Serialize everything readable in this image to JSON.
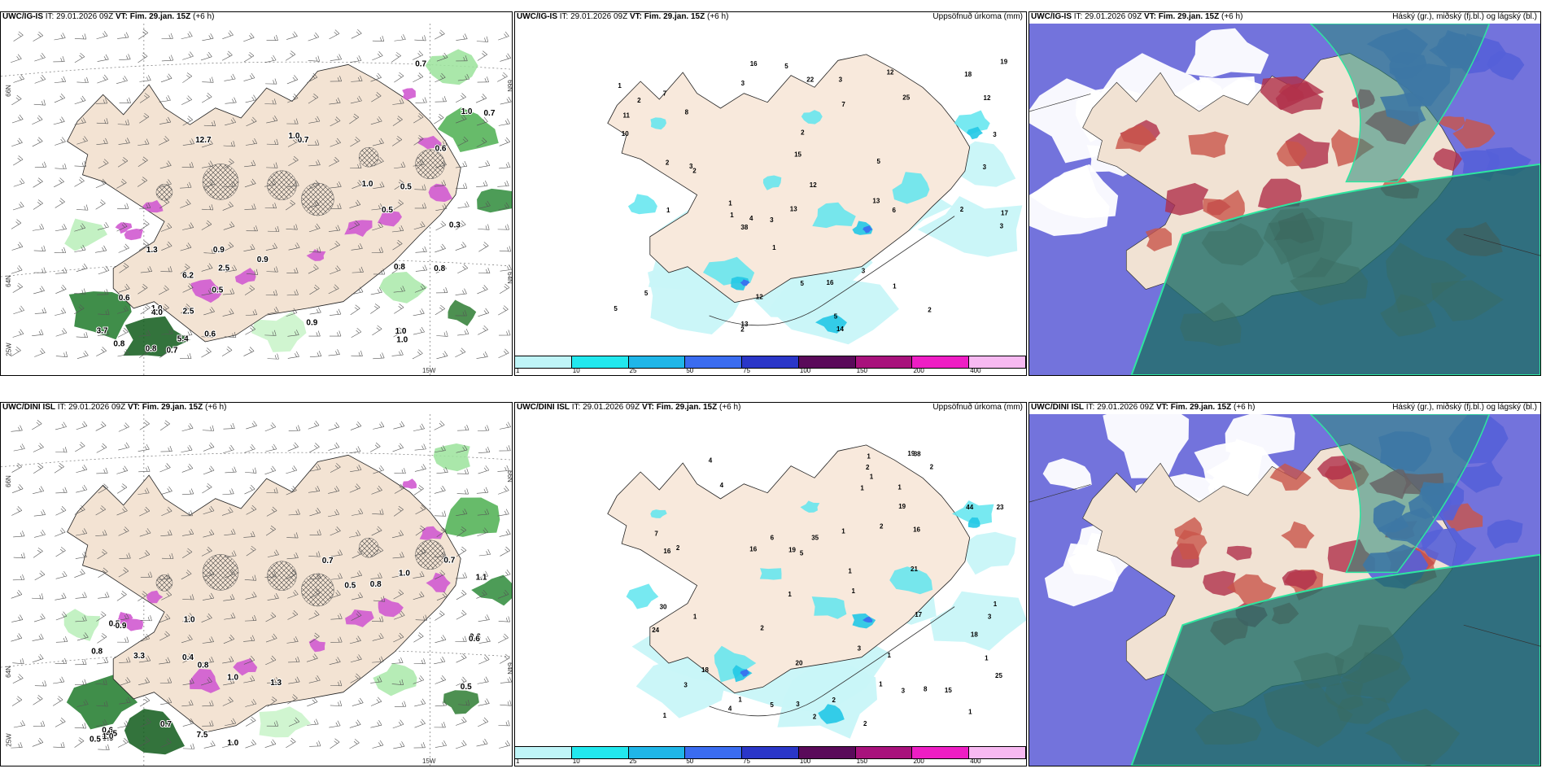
{
  "rows": [
    {
      "model": "UWC/IG-IS",
      "panels": [
        {
          "model": "UWC/IG-IS",
          "it": "IT: 29.01.2026 09Z",
          "vt_label": "VT:",
          "vt": "Fim. 29.jan. 15Z",
          "step": "(+6 h)",
          "title_right": "",
          "lat1": "66N",
          "lat2": "64N",
          "lon_left": "25W",
          "lon_bottom": "15W",
          "lat1_right": "66N",
          "lat2_right": "64N"
        },
        {
          "model": "UWC/IG-IS",
          "it": "IT: 29.01.2026 09Z",
          "vt_label": "VT:",
          "vt": "Fim. 29.jan. 15Z",
          "step": "(+6 h)",
          "title_right": "Uppsöfnuð úrkoma (mm)"
        },
        {
          "model": "UWC/IG-IS",
          "it": "IT: 29.01.2026 09Z",
          "vt_label": "VT:",
          "vt": "Fim. 29.jan. 15Z",
          "step": "(+6 h)",
          "title_right": "Háský (gr.), miðský (fj.bl.) og lágský (bl.)"
        }
      ],
      "precip_labels": [
        "1",
        "1",
        "2",
        "2",
        "1",
        "1",
        "3",
        "5",
        "3",
        "3",
        "5",
        "7",
        "3",
        "3",
        "2",
        "5",
        "18",
        "12",
        "16",
        "14",
        "38",
        "12",
        "5",
        "11",
        "10",
        "7",
        "17",
        "6",
        "3",
        "5",
        "12",
        "13",
        "2",
        "3",
        "8",
        "4",
        "19",
        "22",
        "15",
        "12",
        "5",
        "13",
        "16",
        "25",
        "13",
        "2",
        "2",
        "3",
        "2",
        "1",
        "1"
      ],
      "cloud_labels": [
        "0.5",
        "0.7",
        "0.6",
        "1.0",
        "0.8",
        "0.7",
        "1.3",
        "0.9",
        "0.8",
        "0.7",
        "0.6",
        "0.8",
        "1.0",
        "5.4",
        "6.2",
        "4.0",
        "2.5",
        "3.7",
        "2.5",
        "0.6",
        "0.3",
        "12.7",
        "1.0",
        "0.9",
        "0.7",
        "1.0",
        "0.8",
        "0.5",
        "1.0",
        "0.9",
        "0.5",
        "1.0"
      ]
    },
    {
      "model": "UWC/DINI ISL",
      "panels": [
        {
          "model": "UWC/DINI ISL",
          "it": "IT: 29.01.2026 09Z",
          "vt_label": "VT:",
          "vt": "Fim. 29.jan. 15Z",
          "step": "(+6 h)",
          "title_right": "",
          "lat1": "66N",
          "lat2": "64N",
          "lon_left": "25W",
          "lon_bottom": "15W",
          "lat1_right": "66N",
          "lat2_right": "64N"
        },
        {
          "model": "UWC/DINI ISL",
          "it": "IT: 29.01.2026 09Z",
          "vt_label": "VT:",
          "vt": "Fim. 29.jan. 15Z",
          "step": "(+6 h)",
          "title_right": "Uppsöfnuð úrkoma (mm)"
        },
        {
          "model": "UWC/DINI ISL",
          "it": "IT: 29.01.2026 09Z",
          "vt_label": "VT:",
          "vt": "Fim. 29.jan. 15Z",
          "step": "(+6 h)",
          "title_right": "Háský (gr.), miðský (fj.bl.) og lágský (bl.)"
        }
      ],
      "precip_labels": [
        "1",
        "1",
        "2",
        "1",
        "1",
        "3",
        "5",
        "3",
        "1",
        "1",
        "1",
        "1",
        "2",
        "4",
        "4",
        "3",
        "2",
        "1",
        "1",
        "1",
        "1",
        "2",
        "18",
        "16",
        "21",
        "19",
        "24",
        "44",
        "20",
        "30",
        "7",
        "6",
        "16",
        "2",
        "1",
        "5",
        "18",
        "4",
        "3",
        "8",
        "15",
        "19",
        "17",
        "25",
        "38",
        "35",
        "23",
        "19",
        "16",
        "2",
        "2",
        "2",
        "3",
        "1",
        "1",
        "1"
      ],
      "cloud_labels": [
        "0.6",
        "0.6",
        "0.7",
        "0.5",
        "1.0",
        "1.1",
        "0.5",
        "0.8",
        "1.0",
        "0.7",
        "0.5",
        "0.6",
        "0.8",
        "3.3",
        "7.5",
        "4.5",
        "1.0",
        "0.9",
        "1.0",
        "0.9",
        "0.8",
        "1.3",
        "0.7",
        "0.5",
        "0.4",
        "1.0"
      ]
    }
  ],
  "colorbar": {
    "ticks": [
      "1",
      "10",
      "25",
      "50",
      "75",
      "100",
      "150",
      "200",
      "400"
    ],
    "colors": [
      "#bff5f8",
      "#22e8ee",
      "#1fb6e8",
      "#3a6cf0",
      "#2a36c8",
      "#5a0a5a",
      "#a8127c",
      "#ee1ec4",
      "#f7b9f1"
    ]
  }
}
